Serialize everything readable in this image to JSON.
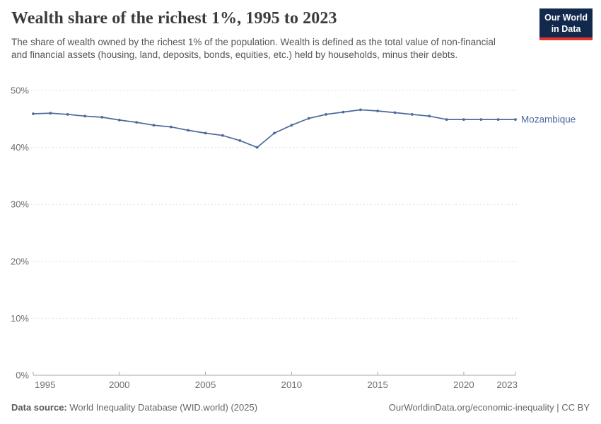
{
  "header": {
    "title": "Wealth share of the richest 1%, 1995 to 2023",
    "subtitle": "The share of wealth owned by the richest 1% of the population. Wealth is defined as the total value of non-financial and financial assets (housing, land, deposits, bonds, equities, etc.) held by households, minus their debts.",
    "logo": {
      "line1": "Our World",
      "line2": "in Data"
    }
  },
  "chart_data": {
    "type": "line",
    "title": "Wealth share of the richest 1%, 1995 to 2023",
    "x": [
      1995,
      1996,
      1997,
      1998,
      1999,
      2000,
      2001,
      2002,
      2003,
      2004,
      2005,
      2006,
      2007,
      2008,
      2009,
      2010,
      2011,
      2012,
      2013,
      2014,
      2015,
      2016,
      2017,
      2018,
      2019,
      2020,
      2021,
      2022,
      2023
    ],
    "series": [
      {
        "name": "Mozambique",
        "color": "#4C6A9C",
        "values": [
          45.9,
          46.0,
          45.8,
          45.5,
          45.3,
          44.8,
          44.4,
          43.9,
          43.6,
          43.0,
          42.5,
          42.1,
          41.2,
          40.0,
          42.5,
          43.9,
          45.1,
          45.8,
          46.2,
          46.6,
          46.4,
          46.1,
          45.8,
          45.5,
          44.9,
          44.9,
          44.9,
          44.9,
          44.9
        ]
      }
    ],
    "xlabel": "",
    "ylabel": "",
    "x_ticks": [
      1995,
      2000,
      2005,
      2010,
      2015,
      2020,
      2023
    ],
    "y_ticks": [
      0,
      10,
      20,
      30,
      40,
      50
    ],
    "y_tick_suffix": "%",
    "xlim": [
      1995,
      2023
    ],
    "ylim": [
      0,
      52
    ],
    "grid": "horizontal-dashed",
    "legend_position": "end-of-line-label"
  },
  "footer": {
    "source_label": "Data source:",
    "source_value": "World Inequality Database (WID.world) (2025)",
    "attribution": "OurWorldinData.org/economic-inequality | CC BY"
  },
  "colors": {
    "series_blue": "#4C6A9C",
    "grid": "#dddddd",
    "axis": "#a8a8a8",
    "tick_text": "#6e6e6e",
    "title_text": "#3b3b3b",
    "subtitle_text": "#555555",
    "footer_text": "#666666",
    "logo_bg": "#12294d",
    "logo_bar": "#e0362c"
  }
}
